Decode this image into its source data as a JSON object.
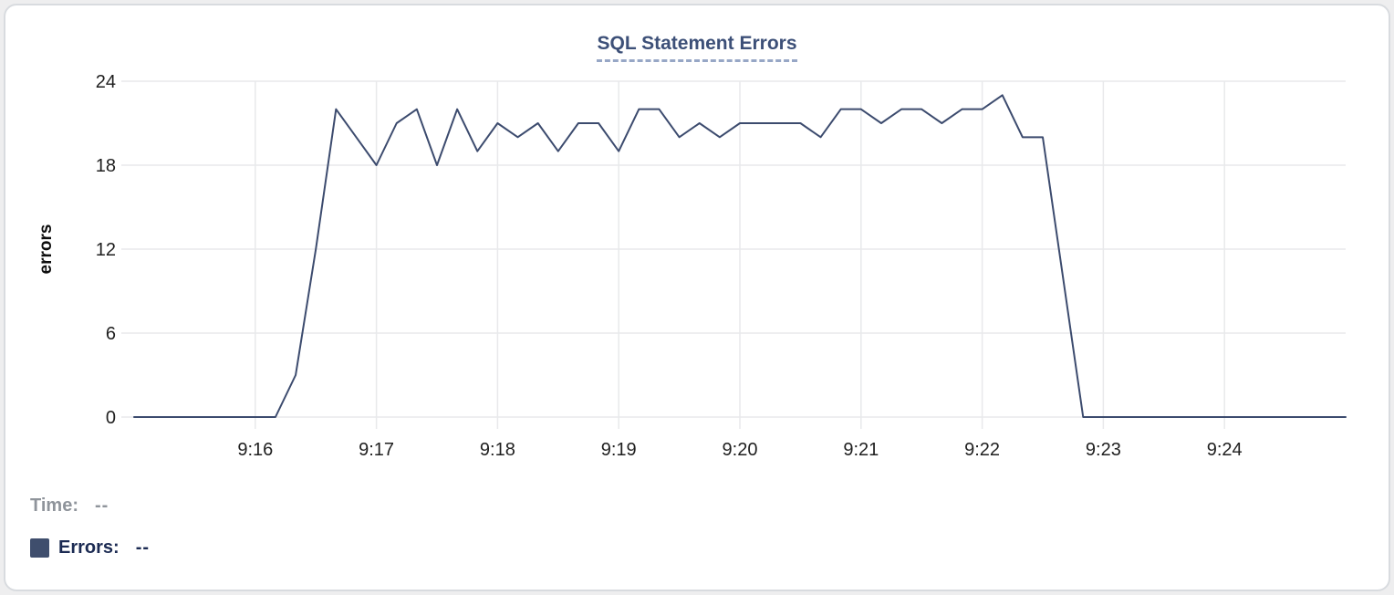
{
  "title": {
    "text": "SQL Statement Errors"
  },
  "legend": {
    "time_label": "Time:",
    "time_value": "--",
    "errors_label": "Errors:",
    "errors_value": "--",
    "swatch_color": "#3f4e6d",
    "swatch_icon": "square-swatch"
  },
  "colors": {
    "line": "#3c4b6e",
    "grid": "#e8e9eb",
    "title": "#3d5078",
    "title_underline": "#97a7c6",
    "tick_label": "#1f1f1f",
    "axis_label": "#0d0d0d",
    "legend_time": "#8f949b",
    "legend_errors": "#1b2a52",
    "card_border": "#d8dbdf",
    "card_bg": "#ffffff",
    "page_bg": "#eeeeef"
  },
  "chart_data": {
    "type": "line",
    "title": "SQL Statement Errors",
    "xlabel": "",
    "ylabel": "errors",
    "ylim": [
      0,
      24
    ],
    "yticks": [
      0,
      6,
      12,
      18,
      24
    ],
    "x_start": "9:15:00",
    "x_end": "9:25:00",
    "x_ticks": [
      "9:16",
      "9:17",
      "9:18",
      "9:19",
      "9:20",
      "9:21",
      "9:22",
      "9:23",
      "9:24"
    ],
    "grid": true,
    "legend_position": "bottom-left",
    "series": [
      {
        "name": "Errors",
        "color": "#3c4b6e",
        "x": [
          "9:15:00",
          "9:15:10",
          "9:15:20",
          "9:15:30",
          "9:15:40",
          "9:15:50",
          "9:16:00",
          "9:16:10",
          "9:16:20",
          "9:16:30",
          "9:16:40",
          "9:16:50",
          "9:17:00",
          "9:17:10",
          "9:17:20",
          "9:17:30",
          "9:17:40",
          "9:17:50",
          "9:18:00",
          "9:18:10",
          "9:18:20",
          "9:18:30",
          "9:18:40",
          "9:18:50",
          "9:19:00",
          "9:19:10",
          "9:19:20",
          "9:19:30",
          "9:19:40",
          "9:19:50",
          "9:20:00",
          "9:20:10",
          "9:20:20",
          "9:20:30",
          "9:20:40",
          "9:20:50",
          "9:21:00",
          "9:21:10",
          "9:21:20",
          "9:21:30",
          "9:21:40",
          "9:21:50",
          "9:22:00",
          "9:22:10",
          "9:22:20",
          "9:22:30",
          "9:22:40",
          "9:22:50",
          "9:23:00",
          "9:23:10",
          "9:23:20",
          "9:23:30",
          "9:23:40",
          "9:23:50",
          "9:24:00",
          "9:24:10",
          "9:24:20",
          "9:24:30",
          "9:24:40",
          "9:24:50",
          "9:25:00"
        ],
        "values": [
          0,
          0,
          0,
          0,
          0,
          0,
          0,
          0,
          3,
          12,
          22,
          20,
          18,
          21,
          22,
          18,
          22,
          19,
          21,
          20,
          21,
          19,
          21,
          21,
          19,
          22,
          22,
          20,
          21,
          20,
          21,
          21,
          21,
          21,
          20,
          22,
          22,
          21,
          22,
          22,
          21,
          22,
          22,
          23,
          20,
          20,
          10,
          0,
          0,
          0,
          0,
          0,
          0,
          0,
          0,
          0,
          0,
          0,
          0,
          0,
          0
        ]
      }
    ]
  }
}
